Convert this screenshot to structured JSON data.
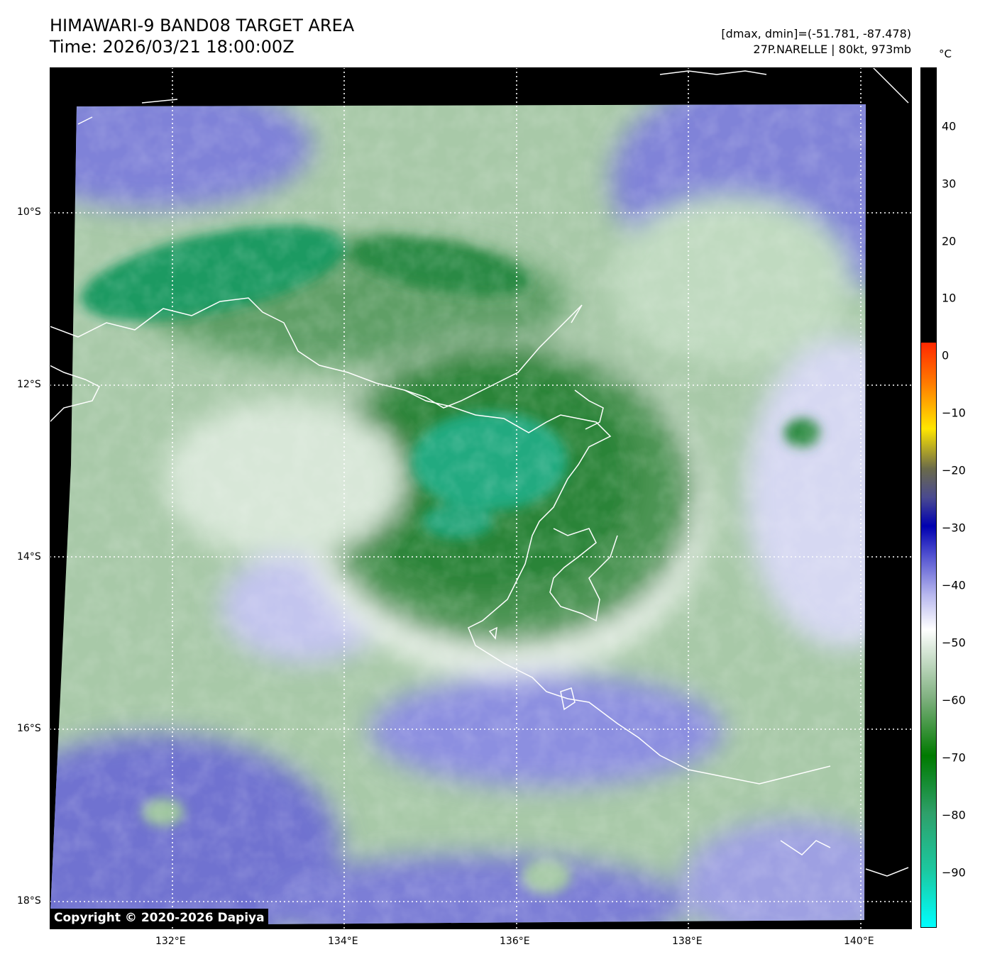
{
  "header": {
    "title": "HIMAWARI-9 BAND08 TARGET AREA",
    "time": "Time: 2026/03/21 18:00:00Z",
    "stats": "[dmax, dmin]=(-51.781, -87.478)",
    "storm": "27P.NARELLE | 80kt, 973mb"
  },
  "axes": {
    "lat_labels": [
      "10°S",
      "12°S",
      "14°S",
      "16°S",
      "18°S"
    ],
    "lon_labels": [
      "132°E",
      "134°E",
      "136°E",
      "138°E",
      "140°E"
    ]
  },
  "colorbar": {
    "unit": "°C",
    "labels": [
      "40",
      "30",
      "20",
      "10",
      "0",
      "−10",
      "−20",
      "−30",
      "−40",
      "−50",
      "−60",
      "−70",
      "−80",
      "−90"
    ],
    "stops": [
      {
        "value": 2,
        "color": "#ff2800"
      },
      {
        "value": -5,
        "color": "#ff7a00"
      },
      {
        "value": -13,
        "color": "#ffe600"
      },
      {
        "value": -20,
        "color": "#6a6a4a"
      },
      {
        "value": -25,
        "color": "#4a4a90"
      },
      {
        "value": -30,
        "color": "#0000b0"
      },
      {
        "value": -35,
        "color": "#5050d0"
      },
      {
        "value": -42,
        "color": "#b8b8ee"
      },
      {
        "value": -48,
        "color": "#ffffff"
      },
      {
        "value": -60,
        "color": "#7fb07f"
      },
      {
        "value": -70,
        "color": "#007a00"
      },
      {
        "value": -80,
        "color": "#2ea06a"
      },
      {
        "value": -90,
        "color": "#1cc8a0"
      },
      {
        "value": -100,
        "color": "#00ffff"
      }
    ]
  },
  "image_colors": {
    "background": "#000000",
    "cold_cloud": "#1a9e66",
    "deep_green": "#2f8a3c",
    "mid_green": "#8cc08c",
    "white_band": "#f0f4f0",
    "clear_purple": "#7c7ed6",
    "coastline": "#ffffff",
    "grid": "#ffffff"
  },
  "copyright": "Copyright © 2020-2026 Dapiya"
}
